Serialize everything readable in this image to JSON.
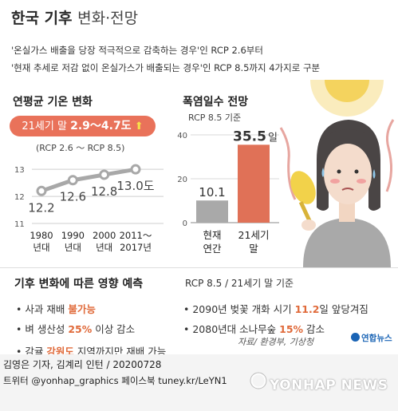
{
  "header": {
    "title_bold": "한국 기후",
    "title_light": "변화·전망",
    "line1": "'온실가스 배출을 당장 적극적으로 감축하는 경우'인 RCP 2.6부터",
    "line2": "'현재 추세로 저감 없이 온실가스가 배출되는 경우'인 RCP 8.5까지 4가지로 구분"
  },
  "chart_data": [
    {
      "type": "line",
      "title": "연평균 기온 변화",
      "highlight_prefix": "21세기 말",
      "highlight_value": "2.9～4.7도",
      "highlight_arrow": "⬆",
      "subtitle": "(RCP 2.6 ～ RCP 8.5)",
      "categories": [
        "1980년대",
        "1990년대",
        "2000년대",
        "2011～2017년"
      ],
      "category_lines": [
        [
          "1980",
          "년대"
        ],
        [
          "1990",
          "년대"
        ],
        [
          "2000",
          "년대"
        ],
        [
          "2011～",
          "2017년"
        ]
      ],
      "values": [
        12.2,
        12.6,
        12.8,
        13.0
      ],
      "data_labels": [
        "12.2",
        "12.6",
        "12.8",
        "13.0도"
      ],
      "yticks": [
        "13",
        "12",
        "11"
      ],
      "ylim": [
        11,
        13.3
      ]
    },
    {
      "type": "bar",
      "title": "폭염일수 전망",
      "subtitle": "RCP 8.5 기준",
      "categories": [
        "현재 연간",
        "21세기 말"
      ],
      "category_lines": [
        [
          "현재",
          "연간"
        ],
        [
          "21세기",
          "말"
        ]
      ],
      "values": [
        10.1,
        35.5
      ],
      "data_labels": [
        "10.1",
        "35.5"
      ],
      "unit_suffix": "일",
      "yticks": [
        "40",
        "20",
        "0"
      ],
      "ylim": [
        0,
        40
      ]
    }
  ],
  "impact": {
    "title": "기후 변화에 따른 영향 예측",
    "subtitle": "RCP 8.5 / 21세기 말 기준",
    "items": [
      {
        "pre": "사과 재배 ",
        "hl": "불가능",
        "post": ""
      },
      {
        "pre": "벼 생산성 ",
        "hl": "25%",
        "post": " 이상 감소"
      },
      {
        "pre": "감귤 ",
        "hl": "강원도",
        "post": " 지역까지만 재배 가능"
      },
      {
        "pre": "2090년 벚꽃 개화 시기 ",
        "hl": "11.2",
        "post": "일 앞당겨짐"
      },
      {
        "pre": "2080년대 소나무숲 ",
        "hl": "15%",
        "post": " 감소"
      }
    ]
  },
  "footer": {
    "source": "자료/ 환경부, 기상청",
    "logo": "연합뉴스",
    "credit": "김영은 기자, 김계리 인턴  / 20200728",
    "social": "트위터 @yonhap_graphics  페이스북 tuney.kr/LeYN1",
    "watermark": "YONHAP NEWS"
  },
  "colors": {
    "accent": "#e9725a",
    "bar_now": "#a9a9a9",
    "bar_future": "#e07157",
    "line": "#a8a8a8",
    "highlight_text": "#e06a3a",
    "sun": "#f4d35e"
  }
}
